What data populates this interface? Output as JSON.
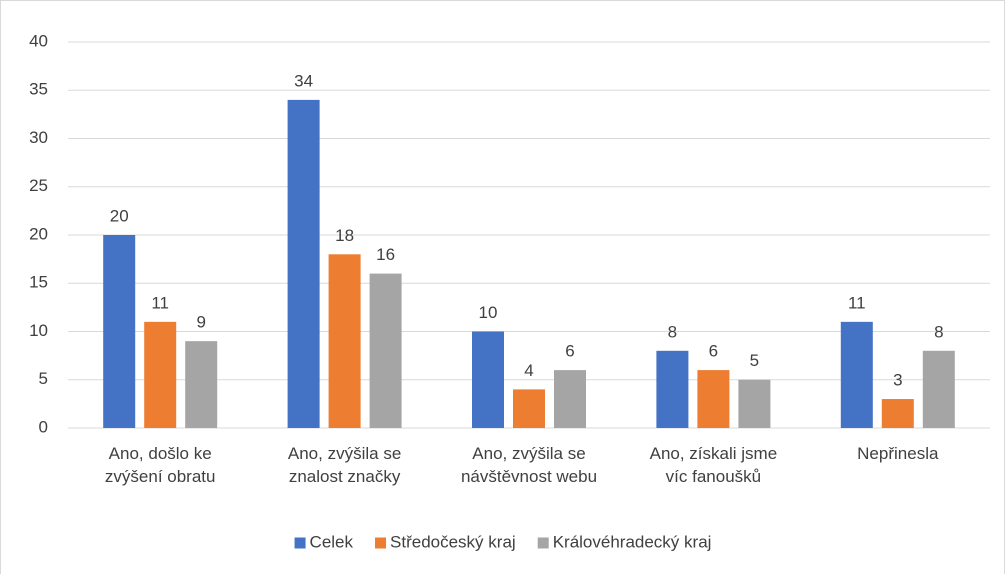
{
  "chart_data": {
    "type": "bar",
    "categories": [
      "Ano, došlo ke zvýšení obratu",
      "Ano, zvýšila se znalost značky",
      "Ano, zvýšila se návštěvnost webu",
      "Ano, získali jsme víc fanoušků",
      "Nepřinesla"
    ],
    "series": [
      {
        "name": "Celek",
        "color": "#4472c4",
        "values": [
          20,
          34,
          10,
          8,
          11
        ]
      },
      {
        "name": "Středočeský kraj",
        "color": "#ed7d31",
        "values": [
          11,
          18,
          4,
          6,
          3
        ]
      },
      {
        "name": "Královéhradecký kraj",
        "color": "#a5a5a5",
        "values": [
          9,
          16,
          6,
          5,
          8
        ]
      }
    ],
    "ylim": [
      0,
      40
    ],
    "yticks": [
      0,
      5,
      10,
      15,
      20,
      25,
      30,
      35,
      40
    ],
    "grid": true,
    "legend": "bottom"
  }
}
